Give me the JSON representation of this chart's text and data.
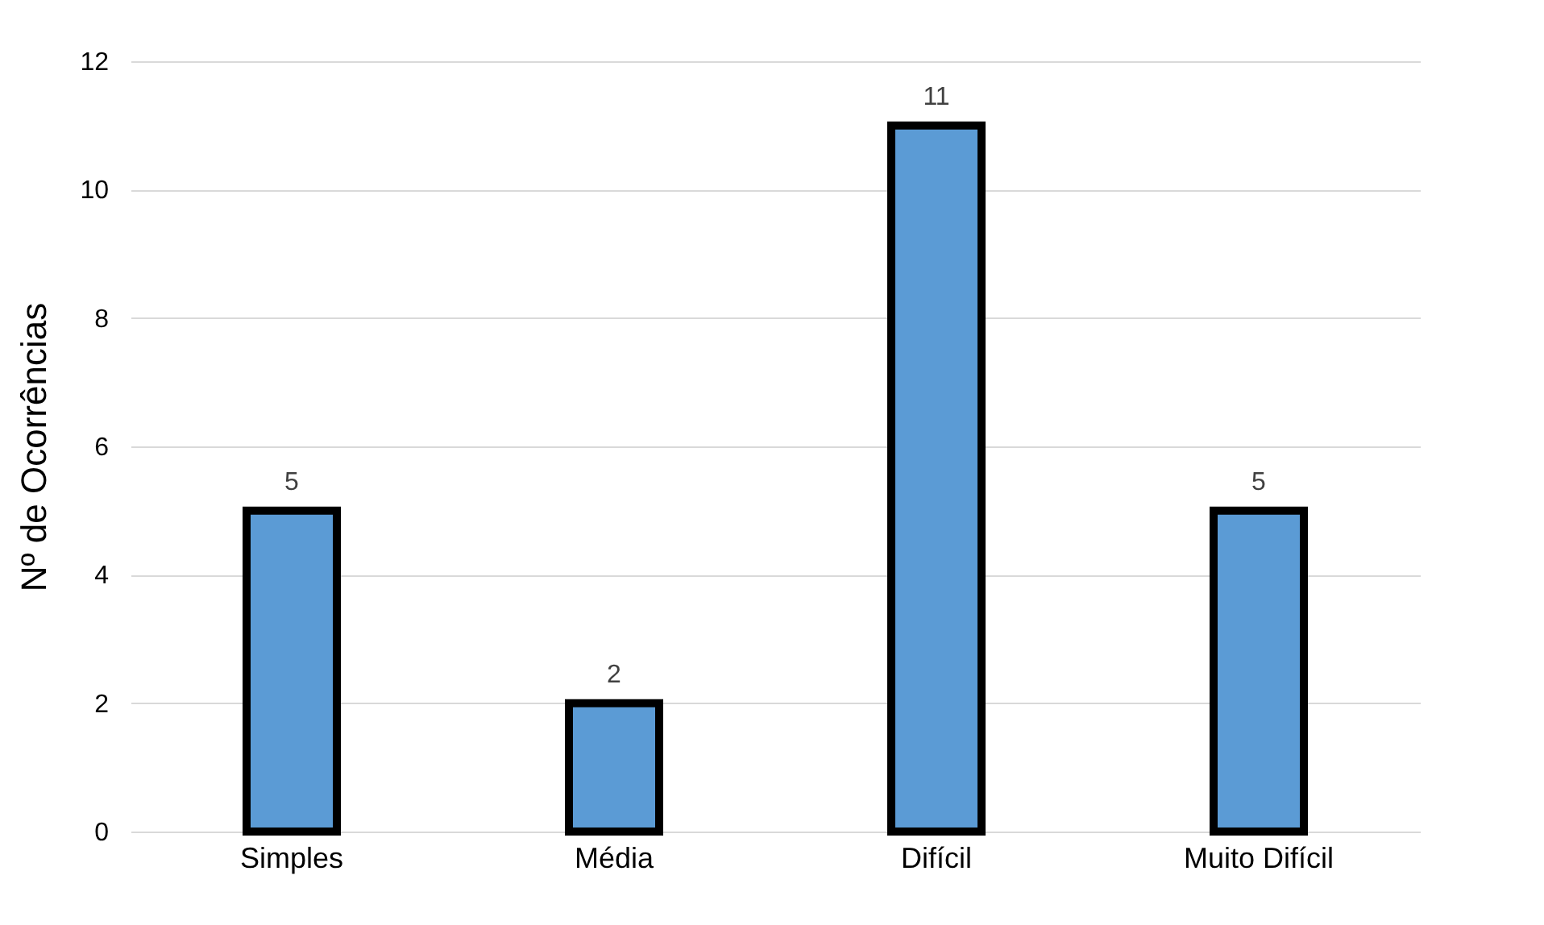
{
  "chart_data": {
    "type": "bar",
    "ylabel": "Nº de Ocorrências",
    "categories": [
      "Simples",
      "Média",
      "Difícil",
      "Muito Difícil"
    ],
    "values": [
      5,
      2,
      11,
      5
    ],
    "color": "#5b9bd5",
    "ylim": [
      0,
      12
    ],
    "yticks": [
      0,
      2,
      4,
      6,
      8,
      10,
      12
    ],
    "grid": "y",
    "data_labels": true
  }
}
